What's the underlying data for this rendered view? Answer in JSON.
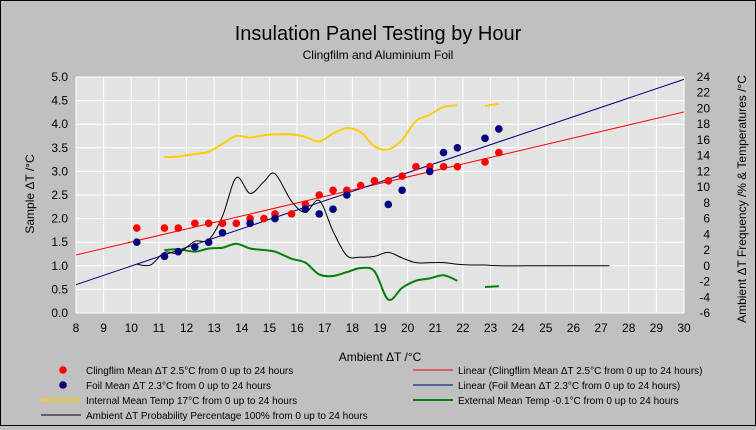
{
  "chart_data": {
    "type": "scatter",
    "title": "Insulation Panel Testing by Hour",
    "subtitle": "Clingfilm and Aluminium Foil",
    "xlabel": "Ambient ΔT /°C",
    "ylabel": "Sample ΔT /°C",
    "y2label": "Ambient ΔT Frequency /% & Temperatures /°C",
    "xlim": [
      8,
      30
    ],
    "ylim": [
      0.0,
      5.0
    ],
    "y2lim": [
      -6,
      24
    ],
    "grid": true,
    "legend_position": "bottom",
    "x_ticks": [
      "8",
      "9",
      "10",
      "11",
      "12",
      "13",
      "14",
      "15",
      "16",
      "17",
      "18",
      "19",
      "20",
      "21",
      "22",
      "23",
      "24",
      "25",
      "26",
      "27",
      "28",
      "29",
      "30"
    ],
    "y_ticks": [
      "0.0",
      "0.5",
      "1.0",
      "1.5",
      "2.0",
      "2.5",
      "3.0",
      "3.5",
      "4.0",
      "4.5",
      "5.0"
    ],
    "y2_ticks": [
      "-6",
      "-4",
      "-2",
      "0",
      "2",
      "4",
      "6",
      "8",
      "10",
      "12",
      "14",
      "16",
      "18",
      "20",
      "22",
      "24"
    ],
    "series": [
      {
        "name": "Clingflim Mean ΔT 2.5°C from 0 up to 24 hours",
        "kind": "scatter",
        "axis": "left",
        "color": "#ff0000",
        "x": [
          10.2,
          11.2,
          11.7,
          12.3,
          12.8,
          13.3,
          13.8,
          14.3,
          14.8,
          15.2,
          15.8,
          16.3,
          16.8,
          17.3,
          17.8,
          18.3,
          18.8,
          19.3,
          19.8,
          20.3,
          20.8,
          21.3,
          21.8,
          22.8,
          23.3
        ],
        "y": [
          1.8,
          1.8,
          1.8,
          1.9,
          1.9,
          1.9,
          1.9,
          2.0,
          2.0,
          2.1,
          2.1,
          2.3,
          2.5,
          2.6,
          2.6,
          2.7,
          2.8,
          2.8,
          2.9,
          3.1,
          3.1,
          3.1,
          3.1,
          3.2,
          3.4
        ]
      },
      {
        "name": "Foil Mean ΔT 2.3°C from 0 up to 24 hours",
        "kind": "scatter",
        "axis": "left",
        "color": "#00007f",
        "x": [
          10.2,
          11.2,
          11.7,
          12.3,
          12.8,
          13.3,
          14.3,
          15.2,
          16.3,
          16.8,
          17.3,
          17.8,
          19.3,
          19.8,
          20.8,
          21.3,
          21.8,
          22.8,
          23.3
        ],
        "y": [
          1.5,
          1.2,
          1.3,
          1.4,
          1.5,
          1.7,
          1.9,
          2.0,
          2.2,
          2.1,
          2.2,
          2.5,
          2.3,
          2.6,
          3.0,
          3.4,
          3.5,
          3.7,
          3.9
        ]
      },
      {
        "name": "Linear (Clingflim Mean ΔT 2.5°C from 0 up to 24 hours)",
        "kind": "line",
        "axis": "left",
        "color": "#ff0000",
        "x": [
          8,
          30
        ],
        "y": [
          1.23,
          4.26
        ]
      },
      {
        "name": "Linear (Foil Mean ΔT 2.3°C from 0 up to 24 hours)",
        "kind": "line",
        "axis": "left",
        "color": "#00007f",
        "x": [
          8,
          30
        ],
        "y": [
          0.6,
          4.95
        ]
      },
      {
        "name": "Internal Mean Temp 17°C from 0 up to 24 hours",
        "kind": "line",
        "axis": "right",
        "color": "#ffcc00",
        "x": [
          11.2,
          11.7,
          12.3,
          12.8,
          13.3,
          13.8,
          14.3,
          14.8,
          15.2,
          15.8,
          16.3,
          16.8,
          17.3,
          17.8,
          18.3,
          18.8,
          19.3,
          19.8,
          20.3,
          20.8,
          21.3,
          21.8
        ],
        "y": [
          13.8,
          13.9,
          14.2,
          14.5,
          15.5,
          16.5,
          16.3,
          16.6,
          16.7,
          16.7,
          16.4,
          15.8,
          16.8,
          17.5,
          17.0,
          15.2,
          14.8,
          16.0,
          18.4,
          19.2,
          20.2,
          20.4
        ]
      },
      {
        "name": "Internal Mean Temp 17°C from 0 up to 24 hours",
        "kind": "line-seg",
        "axis": "right",
        "color": "#ffcc00",
        "x": [
          22.8,
          23.3
        ],
        "y": [
          20.3,
          20.6
        ]
      },
      {
        "name": "External Mean Temp -0.1°C from 0 up to 24 hours",
        "kind": "line",
        "axis": "right",
        "color": "#008000",
        "x": [
          11.2,
          11.7,
          12.3,
          12.8,
          13.3,
          13.8,
          14.3,
          14.8,
          15.2,
          15.8,
          16.3,
          16.8,
          17.3,
          17.8,
          18.3,
          18.8,
          19.3,
          19.8,
          20.3,
          20.8,
          21.3,
          21.8
        ],
        "y": [
          2.0,
          2.1,
          1.8,
          2.2,
          2.3,
          2.8,
          2.2,
          2.0,
          1.8,
          0.9,
          0.4,
          -1.1,
          -1.3,
          -0.8,
          -0.3,
          -0.7,
          -4.3,
          -2.8,
          -1.9,
          -1.6,
          -1.2,
          -1.9
        ]
      },
      {
        "name": "External Mean Temp -0.1°C from 0 up to 24 hours",
        "kind": "line-seg",
        "axis": "right",
        "color": "#008000",
        "x": [
          22.8,
          23.3
        ],
        "y": [
          -2.7,
          -2.6
        ]
      },
      {
        "name": "Ambient ΔT Probability Percentage 100% from 0 up to 24 hours",
        "kind": "line",
        "axis": "right",
        "color": "#000000",
        "x": [
          10.2,
          10.7,
          11.2,
          11.7,
          12.3,
          12.8,
          13.3,
          13.8,
          14.3,
          14.8,
          15.2,
          15.8,
          16.3,
          16.8,
          17.3,
          17.8,
          18.3,
          18.8,
          19.3,
          19.8,
          20.3,
          20.8,
          21.3,
          21.8,
          22.3,
          22.8,
          23.3,
          24.3,
          25.3,
          26.3,
          27.3
        ],
        "y": [
          0.2,
          0.1,
          1.7,
          1.6,
          3.1,
          3.3,
          6.3,
          11.2,
          9.2,
          10.7,
          11.7,
          8.2,
          6.8,
          8.3,
          4.4,
          1.3,
          1.1,
          1.2,
          1.7,
          1.0,
          0.4,
          0.4,
          0.4,
          0.2,
          0.1,
          0.1,
          0.0,
          0.0,
          0.0,
          0.0,
          0.0
        ]
      }
    ],
    "legend": [
      {
        "label": "Clingflim Mean ΔT 2.5°C from 0 up to 24 hours",
        "type": "marker",
        "color": "#ff0000"
      },
      {
        "label": "Linear (Clingflim Mean ΔT 2.5°C from 0 up to 24 hours)",
        "type": "line",
        "color": "#ff0000"
      },
      {
        "label": "Foil Mean ΔT 2.3°C from 0 up to 24 hours",
        "type": "marker",
        "color": "#00007f"
      },
      {
        "label": "Linear (Foil Mean ΔT 2.3°C from 0 up to 24 hours)",
        "type": "line",
        "color": "#00007f"
      },
      {
        "label": "Internal Mean Temp 17°C from 0 up to 24 hours",
        "type": "line",
        "color": "#ffcc00"
      },
      {
        "label": "External Mean Temp -0.1°C from 0 up to 24 hours",
        "type": "line",
        "color": "#008000"
      },
      {
        "label": "Ambient ΔT Probability Percentage 100% from 0 up to 24 hours",
        "type": "line",
        "color": "#000000"
      }
    ]
  }
}
